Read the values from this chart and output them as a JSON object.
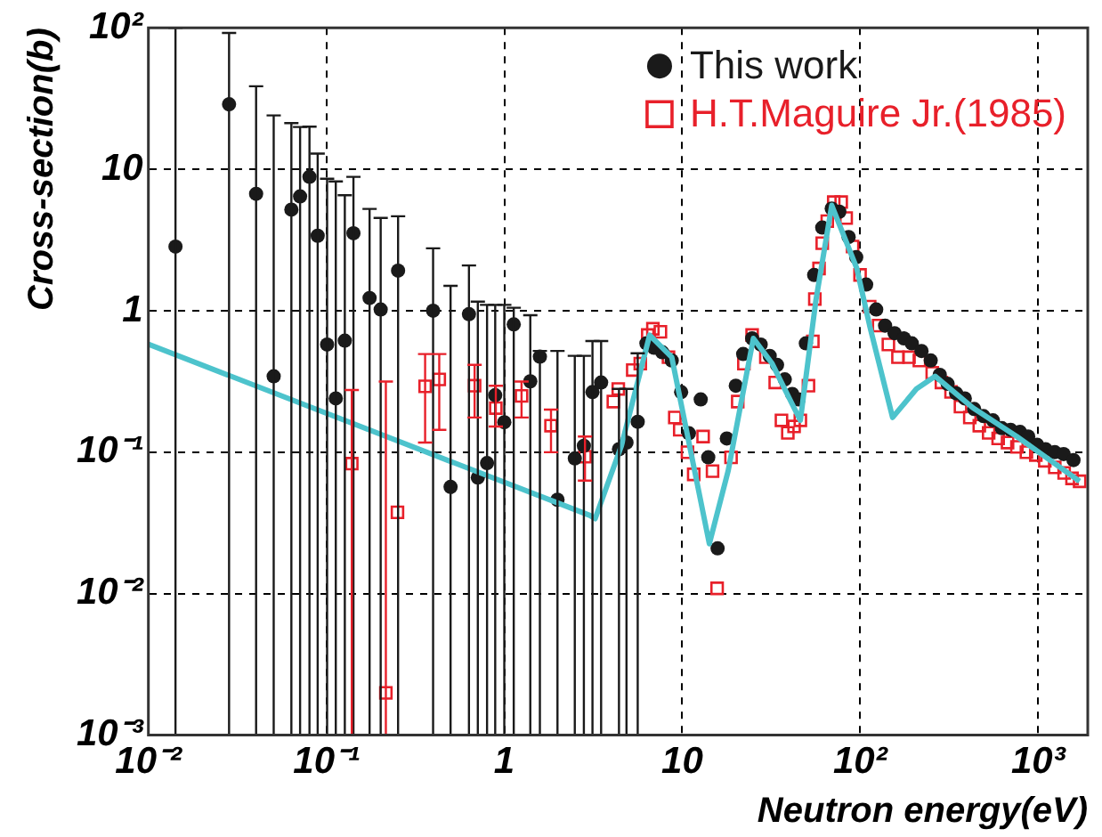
{
  "chart_data": {
    "type": "scatter",
    "xlabel": "Neutron energy(eV)",
    "ylabel": "Cross-section(b)",
    "log": "xy",
    "grid": true,
    "legend": "top right",
    "xlim": [
      0.01,
      1900
    ],
    "ylim": [
      0.001,
      100
    ],
    "xticks": [
      {
        "value": 0.01,
        "label": "10⁻²"
      },
      {
        "value": 0.1,
        "label": "10⁻¹"
      },
      1,
      10,
      {
        "value": 100,
        "label": "10²"
      },
      {
        "value": 1000,
        "label": "10³"
      }
    ],
    "yticks": [
      {
        "value": 0.001,
        "label": "10⁻³"
      },
      {
        "value": 0.01,
        "label": "10⁻²"
      },
      {
        "value": 0.1,
        "label": "10⁻¹"
      },
      1,
      10,
      {
        "value": 100,
        "label": "10²"
      }
    ],
    "series": [
      {
        "type": "line",
        "color": "#4dc3cc",
        "marker": "none",
        "line_style": "solid",
        "x": [
          0.01,
          3.03,
          3.24,
          4.55,
          6.56,
          8.73,
          14.2,
          18.1,
          25.1,
          32,
          40.8,
          46.1,
          56.4,
          69.2,
          95.7,
          113,
          152,
          207,
          264,
          430,
          759,
          1710
        ],
        "values": [
          0.58,
          0.0357,
          0.0339,
          0.111,
          0.673,
          0.469,
          0.0225,
          0.0735,
          0.638,
          0.423,
          0.228,
          0.168,
          1.19,
          5.56,
          1.99,
          0.785,
          0.176,
          0.28,
          0.344,
          0.206,
          0.129,
          0.0623
        ]
      },
      {
        "name": "This work",
        "color": "#1a1a1a",
        "marker": "circle",
        "x": [
          0.0142,
          0.0284,
          0.0403,
          0.0506,
          0.0636,
          0.0712,
          0.0804,
          0.0894,
          0.101,
          0.113,
          0.127,
          0.142,
          0.175,
          0.202,
          0.253,
          0.398,
          0.499,
          0.633,
          0.71,
          0.8,
          0.889,
          1.0,
          1.13,
          1.4,
          1.585,
          1.99,
          2.49,
          2.8,
          3.13,
          3.5,
          4.41,
          4.86,
          5.62,
          6.29,
          6.94,
          7.72,
          8.73,
          9.86,
          10.9,
          12.7,
          14.0,
          15.8,
          17.8,
          20,
          22,
          24.7,
          27.6,
          31,
          34.1,
          37.7,
          41.5,
          45,
          49.5,
          55.1,
          61.2,
          69.2,
          76.3,
          86.1,
          95,
          108,
          123,
          138,
          156,
          176,
          195,
          221,
          249,
          280,
          310,
          346,
          387,
          437,
          493,
          557,
          625,
          700,
          791,
          879,
          986,
          1100,
          1240,
          1390,
          1580
        ],
        "values": [
          2.84,
          28.8,
          6.7,
          0.344,
          5.18,
          6.43,
          8.84,
          3.39,
          0.577,
          0.24,
          0.614,
          3.53,
          1.23,
          1.02,
          1.92,
          1.0,
          0.0568,
          0.946,
          0.0662,
          0.0838,
          0.253,
          0.163,
          0.8,
          0.317,
          0.473,
          0.0461,
          0.0904,
          0.111,
          0.266,
          0.311,
          0.105,
          0.117,
          0.164,
          0.588,
          0.547,
          0.509,
          0.445,
          0.266,
          0.136,
          0.236,
          0.092,
          0.0209,
          0.125,
          0.295,
          0.494,
          0.638,
          0.577,
          0.479,
          0.414,
          0.327,
          0.258,
          0.236,
          0.588,
          1.79,
          3.87,
          5.27,
          5.01,
          3.32,
          2.39,
          1.53,
          1.02,
          0.785,
          0.694,
          0.638,
          0.588,
          0.519,
          0.445,
          0.352,
          0.304,
          0.261,
          0.24,
          0.202,
          0.18,
          0.168,
          0.148,
          0.144,
          0.139,
          0.129,
          0.113,
          0.105,
          0.1,
          0.097,
          0.088
        ],
        "errors": [
          [
            0.001,
            100
          ],
          [
            0.001,
            92
          ],
          [
            0.001,
            38.6
          ],
          [
            0.001,
            24
          ],
          [
            0.001,
            21.2
          ],
          [
            0.001,
            19.9
          ],
          [
            0.001,
            20
          ],
          [
            0.001,
            12.9
          ],
          [
            0.001,
            8.57
          ],
          [
            0.001,
            8.2
          ],
          [
            0.001,
            6.55
          ],
          [
            0.001,
            8.84
          ],
          [
            0.001,
            5.24
          ],
          [
            0.001,
            4.53
          ],
          [
            0.001,
            4.65
          ],
          [
            0.001,
            2.76
          ],
          [
            0.001,
            1.5
          ],
          [
            0.001,
            2.09
          ],
          [
            0.001,
            1.16
          ],
          [
            0.001,
            1.1
          ],
          [
            0.001,
            1.1
          ],
          [
            0.001,
            1.1
          ],
          [
            0.001,
            1.05
          ],
          [
            0.001,
            0.93
          ],
          [
            0.001,
            0.52
          ],
          [
            0.001,
            0.52
          ],
          [
            0.001,
            0.48
          ],
          [
            0.001,
            0.48
          ],
          [
            0.001,
            0.61
          ],
          [
            0.001,
            0.61
          ],
          [
            0.001,
            0.28
          ],
          [
            0.001,
            0.28
          ],
          [
            0.001,
            0.5
          ],
          null,
          null,
          null,
          null,
          null,
          null,
          null,
          null,
          null,
          null,
          null,
          null,
          null,
          null,
          null,
          null,
          null,
          null,
          null,
          null,
          null,
          null,
          null,
          null,
          null,
          null,
          null,
          null,
          null,
          null,
          null,
          null,
          null,
          null,
          null,
          null,
          null,
          null,
          null,
          null,
          null,
          null,
          null,
          null,
          null,
          null,
          null,
          null,
          null,
          null
        ]
      },
      {
        "name": "H.T.Maguire Jr.(1985)",
        "color": "#e8202a",
        "marker": "square",
        "x": [
          0.139,
          0.216,
          0.251,
          0.359,
          0.431,
          0.681,
          0.896,
          1.25,
          1.83,
          2.84,
          4.1,
          4.37,
          5.27,
          5.81,
          6.4,
          6.84,
          7.54,
          8.37,
          9.08,
          9.68,
          10.7,
          11.6,
          13.1,
          14.8,
          15.7,
          18.8,
          20.5,
          22.2,
          24.7,
          29.5,
          33.3,
          36.1,
          39.2,
          42.5,
          46.1,
          51.2,
          54.2,
          55.6,
          58.7,
          61.2,
          65.3,
          71,
          78.2,
          83.4,
          90.6,
          99.8,
          113,
          127,
          144,
          163,
          188,
          215,
          254,
          286,
          324,
          366,
          413,
          467,
          527,
          596,
          673,
          760,
          859,
          970,
          1090,
          1240,
          1400,
          1550,
          1710
        ],
        "values": [
          0.083,
          0.00199,
          0.0376,
          0.292,
          0.327,
          0.295,
          0.205,
          0.25,
          0.154,
          0.093,
          0.228,
          0.28,
          0.381,
          0.423,
          0.673,
          0.745,
          0.71,
          0.469,
          0.176,
          0.144,
          0.1,
          0.0697,
          0.129,
          0.0735,
          0.0109,
          0.092,
          0.228,
          0.423,
          0.673,
          0.469,
          0.311,
          0.168,
          0.137,
          0.152,
          0.168,
          0.295,
          0.607,
          1.21,
          1.99,
          3.0,
          4.3,
          5.86,
          5.86,
          4.52,
          2.84,
          1.79,
          1.07,
          0.785,
          0.577,
          0.469,
          0.469,
          0.445,
          0.364,
          0.311,
          0.267,
          0.21,
          0.176,
          0.154,
          0.137,
          0.125,
          0.117,
          0.109,
          0.1,
          0.0955,
          0.0869,
          0.0781,
          0.0714,
          0.0653,
          0.0623
        ],
        "errors": [
          [
            0.001,
            0.275
          ],
          [
            0.001,
            0.316
          ],
          null,
          [
            0.117,
            0.494
          ],
          [
            0.144,
            0.494
          ],
          [
            0.176,
            0.414
          ],
          [
            0.152,
            0.295
          ],
          [
            0.176,
            0.316
          ],
          [
            0.1,
            0.2
          ],
          [
            0.063,
            0.129
          ],
          null,
          null,
          null,
          null,
          null,
          null,
          null,
          null,
          null,
          null,
          null,
          null,
          null,
          null,
          null,
          null,
          null,
          null,
          null,
          null,
          null,
          null,
          null,
          null,
          null,
          null,
          null,
          null,
          null,
          null,
          null,
          null,
          null,
          null,
          null,
          null,
          null,
          null,
          null,
          null,
          null,
          null,
          null,
          null,
          null,
          null,
          null,
          null,
          null,
          null,
          null,
          null,
          null,
          null,
          null,
          null,
          null,
          null,
          null
        ]
      }
    ]
  }
}
